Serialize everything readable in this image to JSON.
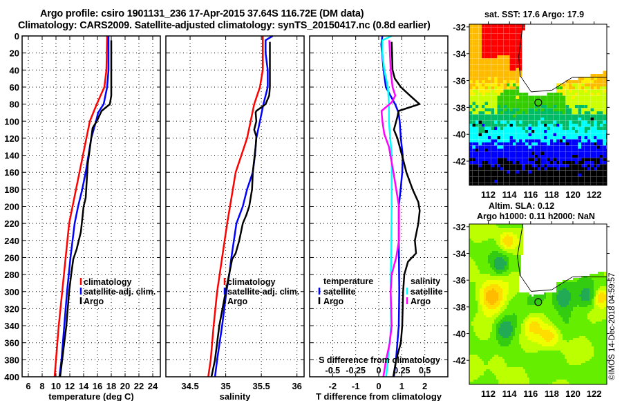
{
  "header": {
    "title_line1": "Argo profile: csiro 1901131_236 17-Apr-2015 37.64S 116.72E (DM data)",
    "title_line2": "Climatology: CARS2009. Satellite-adjusted climatology: synTS_20150417.nc (0.8d earlier)"
  },
  "colors": {
    "climatology": "#ff0000",
    "satellite": "#0000ff",
    "argo": "#000000",
    "salinity_satellite": "#00ffff",
    "salinity_argo": "#ff00ff"
  },
  "chart_data": [
    {
      "type": "line",
      "id": "temperature",
      "xlabel": "temperature (deg C)",
      "ylabel": "",
      "xlim": [
        5.1,
        25.1
      ],
      "ylim": [
        400,
        0
      ],
      "xticks": [
        6,
        8,
        10,
        12,
        14,
        16,
        18,
        20,
        22,
        24
      ],
      "yticks": [
        0,
        20,
        40,
        60,
        80,
        100,
        120,
        140,
        160,
        180,
        200,
        220,
        240,
        260,
        280,
        300,
        320,
        340,
        360,
        380,
        400
      ],
      "grid": true,
      "legend": {
        "position": "center-right",
        "entries": [
          "climatology",
          "satellite-adj. clim.",
          "Argo"
        ]
      },
      "series": [
        {
          "name": "climatology",
          "color": "#ff0000",
          "points": [
            [
              17.4,
              0
            ],
            [
              17.3,
              40
            ],
            [
              17.0,
              60
            ],
            [
              15.9,
              80
            ],
            [
              14.9,
              100
            ],
            [
              14.4,
              120
            ],
            [
              13.9,
              140
            ],
            [
              13.4,
              160
            ],
            [
              12.9,
              180
            ],
            [
              12.4,
              200
            ],
            [
              11.9,
              220
            ],
            [
              11.4,
              260
            ],
            [
              10.9,
              300
            ],
            [
              10.4,
              340
            ],
            [
              10.2,
              360
            ],
            [
              9.8,
              400
            ]
          ]
        },
        {
          "name": "satellite-adj. clim.",
          "color": "#0000ff",
          "points": [
            [
              17.6,
              0
            ],
            [
              17.6,
              40
            ],
            [
              17.4,
              60
            ],
            [
              16.9,
              80
            ],
            [
              16.1,
              90
            ],
            [
              15.8,
              100
            ],
            [
              15.1,
              120
            ],
            [
              14.7,
              140
            ],
            [
              14.3,
              160
            ],
            [
              13.8,
              180
            ],
            [
              13.2,
              200
            ],
            [
              12.7,
              220
            ],
            [
              12.1,
              260
            ],
            [
              11.6,
              300
            ],
            [
              11.2,
              340
            ],
            [
              10.8,
              380
            ],
            [
              10.5,
              400
            ]
          ]
        },
        {
          "name": "Argo",
          "color": "#000000",
          "points": [
            [
              18.0,
              5
            ],
            [
              18.0,
              70
            ],
            [
              17.8,
              80
            ],
            [
              16.6,
              88
            ],
            [
              15.9,
              100
            ],
            [
              15.3,
              108
            ],
            [
              15.1,
              120
            ],
            [
              14.6,
              150
            ],
            [
              14.3,
              190
            ],
            [
              14.0,
              200
            ],
            [
              13.6,
              230
            ],
            [
              13.0,
              250
            ],
            [
              12.5,
              262
            ],
            [
              12.2,
              280
            ],
            [
              11.9,
              300
            ],
            [
              11.5,
              340
            ],
            [
              10.9,
              380
            ],
            [
              10.6,
              400
            ]
          ]
        }
      ]
    },
    {
      "type": "line",
      "id": "salinity",
      "xlabel": "salinity",
      "ylabel": "",
      "xlim": [
        34.16,
        36.1
      ],
      "ylim": [
        400,
        0
      ],
      "xticks": [
        34.5,
        35,
        35.5,
        36
      ],
      "yticks": [
        0,
        20,
        40,
        60,
        80,
        100,
        120,
        140,
        160,
        180,
        200,
        220,
        240,
        260,
        280,
        300,
        320,
        340,
        360,
        380,
        400
      ],
      "grid": true,
      "legend": {
        "position": "center-right",
        "entries": [
          "climatology",
          "satellite-adj. clim.",
          "Argo"
        ]
      },
      "series": [
        {
          "name": "climatology",
          "color": "#ff0000",
          "points": [
            [
              35.52,
              0
            ],
            [
              35.52,
              40
            ],
            [
              35.48,
              60
            ],
            [
              35.4,
              80
            ],
            [
              35.35,
              100
            ],
            [
              35.3,
              120
            ],
            [
              35.22,
              140
            ],
            [
              35.14,
              160
            ],
            [
              35.1,
              180
            ],
            [
              35.06,
              200
            ],
            [
              35.02,
              220
            ],
            [
              34.95,
              260
            ],
            [
              34.88,
              300
            ],
            [
              34.83,
              340
            ],
            [
              34.79,
              380
            ],
            [
              34.755,
              400
            ]
          ]
        },
        {
          "name": "satellite-adj. clim.",
          "color": "#0000ff",
          "points": [
            [
              35.66,
              0
            ],
            [
              35.56,
              5
            ],
            [
              35.56,
              20
            ],
            [
              35.59,
              40
            ],
            [
              35.59,
              60
            ],
            [
              35.53,
              80
            ],
            [
              35.48,
              100
            ],
            [
              35.43,
              120
            ],
            [
              35.41,
              140
            ],
            [
              35.38,
              160
            ],
            [
              35.3,
              180
            ],
            [
              35.24,
              200
            ],
            [
              35.15,
              220
            ],
            [
              35.08,
              260
            ],
            [
              35.05,
              280
            ],
            [
              35.01,
              300
            ],
            [
              34.95,
              340
            ],
            [
              34.88,
              380
            ],
            [
              34.85,
              400
            ]
          ]
        },
        {
          "name": "Argo",
          "color": "#000000",
          "points": [
            [
              35.62,
              7
            ],
            [
              35.62,
              60
            ],
            [
              35.61,
              70
            ],
            [
              35.56,
              80
            ],
            [
              35.43,
              88
            ],
            [
              35.42,
              90
            ],
            [
              35.43,
              100
            ],
            [
              35.4,
              110
            ],
            [
              35.43,
              118
            ],
            [
              35.42,
              130
            ],
            [
              35.38,
              160
            ],
            [
              35.37,
              180
            ],
            [
              35.33,
              200
            ],
            [
              35.29,
              210
            ],
            [
              35.24,
              220
            ],
            [
              35.19,
              240
            ],
            [
              35.14,
              255
            ],
            [
              35.09,
              262
            ],
            [
              35.0,
              300
            ],
            [
              34.91,
              340
            ],
            [
              34.85,
              380
            ],
            [
              34.8,
              400
            ]
          ]
        }
      ]
    },
    {
      "type": "line",
      "id": "difference",
      "xlabel": "T difference from climatology",
      "x2label": "S difference from climatology",
      "xlim": [
        -3.0,
        3.0
      ],
      "x2lim": [
        -0.75,
        0.75
      ],
      "ylim": [
        400,
        0
      ],
      "xticks": [
        -2,
        -1,
        0,
        1,
        2
      ],
      "x2ticks": [
        -0.5,
        -0.25,
        0,
        0.25,
        0.5
      ],
      "yticks": [
        0,
        20,
        40,
        60,
        80,
        100,
        120,
        140,
        160,
        180,
        200,
        220,
        240,
        260,
        280,
        300,
        320,
        340,
        360,
        380,
        400
      ],
      "grid": true,
      "legend": {
        "position": "center",
        "temperature_title": "temperature",
        "salinity_title": "salinity",
        "entries": [
          "satellite",
          "Argo"
        ]
      },
      "series": [
        {
          "name": "temperature satellite",
          "axis": "T",
          "color": "#0000ff",
          "points": [
            [
              0.16,
              0
            ],
            [
              0.11,
              10
            ],
            [
              0.21,
              40
            ],
            [
              0.31,
              60
            ],
            [
              0.71,
              80
            ],
            [
              0.86,
              90
            ],
            [
              0.91,
              100
            ],
            [
              0.96,
              120
            ],
            [
              1.04,
              140
            ],
            [
              1.02,
              160
            ],
            [
              0.95,
              180
            ],
            [
              0.87,
              200
            ],
            [
              0.87,
              240
            ],
            [
              0.89,
              300
            ],
            [
              0.87,
              340
            ],
            [
              0.81,
              360
            ],
            [
              0.75,
              380
            ],
            [
              0.66,
              400
            ]
          ]
        },
        {
          "name": "temperature Argo",
          "axis": "T",
          "color": "#000000",
          "points": [
            [
              0.56,
              7
            ],
            [
              0.6,
              40
            ],
            [
              0.7,
              50
            ],
            [
              0.96,
              60
            ],
            [
              1.36,
              70
            ],
            [
              1.77,
              80
            ],
            [
              0.86,
              88
            ],
            [
              0.81,
              95
            ],
            [
              0.66,
              110
            ],
            [
              0.81,
              120
            ],
            [
              1.01,
              140
            ],
            [
              1.2,
              160
            ],
            [
              1.47,
              180
            ],
            [
              1.72,
              195
            ],
            [
              1.78,
              205
            ],
            [
              1.72,
              220
            ],
            [
              1.57,
              240
            ],
            [
              1.62,
              255
            ],
            [
              1.27,
              265
            ],
            [
              1.11,
              280
            ],
            [
              1.06,
              300
            ],
            [
              1.02,
              340
            ],
            [
              0.96,
              360
            ],
            [
              0.76,
              380
            ],
            [
              0.63,
              400
            ]
          ]
        },
        {
          "name": "salinity satellite",
          "axis": "S",
          "color": "#00ffff",
          "points": [
            [
              0.14,
              0
            ],
            [
              0.04,
              5
            ],
            [
              0.04,
              20
            ],
            [
              0.06,
              40
            ],
            [
              0.1,
              60
            ],
            [
              0.11,
              80
            ],
            [
              0.11,
              100
            ],
            [
              0.14,
              140
            ],
            [
              0.14,
              200
            ],
            [
              0.13,
              300
            ],
            [
              0.135,
              340
            ],
            [
              0.1,
              380
            ],
            [
              0.08,
              400
            ]
          ]
        },
        {
          "name": "salinity Argo",
          "axis": "S",
          "color": "#ff00ff",
          "points": [
            [
              0.115,
              5
            ],
            [
              0.13,
              40
            ],
            [
              0.15,
              60
            ],
            [
              0.18,
              70
            ],
            [
              0.14,
              78
            ],
            [
              0.03,
              88
            ],
            [
              0.04,
              100
            ],
            [
              0.06,
              115
            ],
            [
              0.11,
              130
            ],
            [
              0.16,
              160
            ],
            [
              0.22,
              200
            ],
            [
              0.22,
              240
            ],
            [
              0.19,
              260
            ],
            [
              0.14,
              280
            ],
            [
              0.13,
              300
            ],
            [
              0.14,
              340
            ],
            [
              0.12,
              360
            ],
            [
              0.08,
              380
            ],
            [
              0.05,
              400
            ]
          ]
        }
      ]
    },
    {
      "type": "heatmap",
      "id": "sst-map",
      "title": "sat. SST: 17.6 Argo: 17.9",
      "xlim": [
        110.2,
        123.2
      ],
      "ylim": [
        -43.8,
        -31.8
      ],
      "xticks": [
        112,
        114,
        116,
        118,
        120,
        122
      ],
      "yticks": [
        -32,
        -34,
        -36,
        -38,
        -40,
        -42
      ],
      "marker": {
        "lon": 116.72,
        "lat": -37.64
      }
    },
    {
      "type": "heatmap",
      "id": "sla-map",
      "title_line1": "Altim. SLA: 0.12",
      "title_line2": "Argo h1000: 0.11 h2000: NaN",
      "xlim": [
        110.2,
        123.2
      ],
      "ylim": [
        -43.8,
        -31.8
      ],
      "xticks": [
        112,
        114,
        116,
        118,
        120,
        122
      ],
      "yticks": [
        -32,
        -34,
        -36,
        -38,
        -40,
        -42
      ],
      "marker": {
        "lon": 116.72,
        "lat": -37.64
      }
    }
  ],
  "footer": {
    "copyright": "©IMOS 14-Dec-2018 04:59:57"
  }
}
